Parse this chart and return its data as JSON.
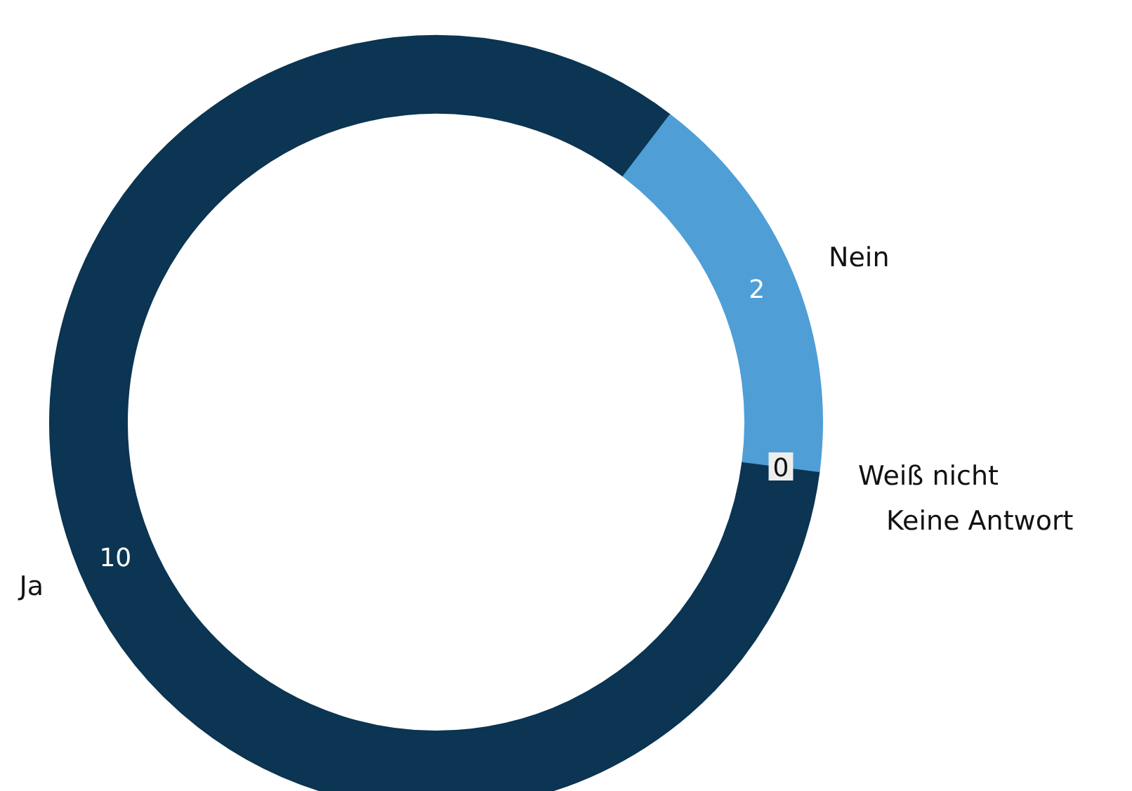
{
  "chart_data": {
    "type": "donut",
    "categories": [
      "Ja",
      "Nein",
      "Weiß nicht",
      "Keine Antwort"
    ],
    "values": [
      10,
      2,
      0,
      0
    ],
    "colors": [
      "#0b3552",
      "#4f9fd6",
      "#eceeee",
      "#eceeee"
    ],
    "value_labels": [
      "10",
      "2",
      "0",
      null
    ]
  }
}
